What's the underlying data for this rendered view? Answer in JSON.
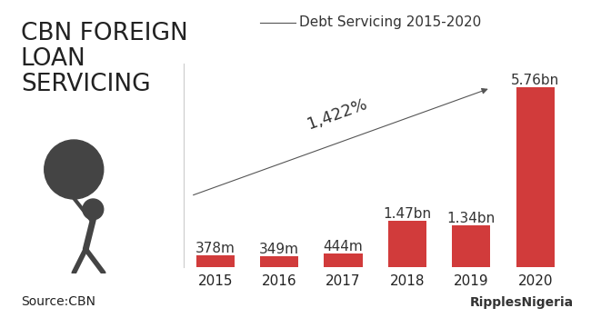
{
  "chart_data": {
    "type": "bar",
    "title": "CBN FOREIGN LOAN SERVICING",
    "subtitle": "Debt Servicing 2015-2020",
    "annotation": "1,422%",
    "source": "Source:CBN",
    "credit": "RipplesNigeria",
    "categories": [
      "2015",
      "2016",
      "2017",
      "2018",
      "2019",
      "2020"
    ],
    "values": [
      378,
      349,
      444,
      1470,
      1340,
      5760
    ],
    "value_labels": [
      "378m",
      "349m",
      "444m",
      "1.47bn",
      "1.34bn",
      "5.76bn"
    ],
    "color": "#d13b3b",
    "ylim": [
      0,
      6500
    ],
    "data_labels": true,
    "tick_labels": "x",
    "grid": false
  }
}
